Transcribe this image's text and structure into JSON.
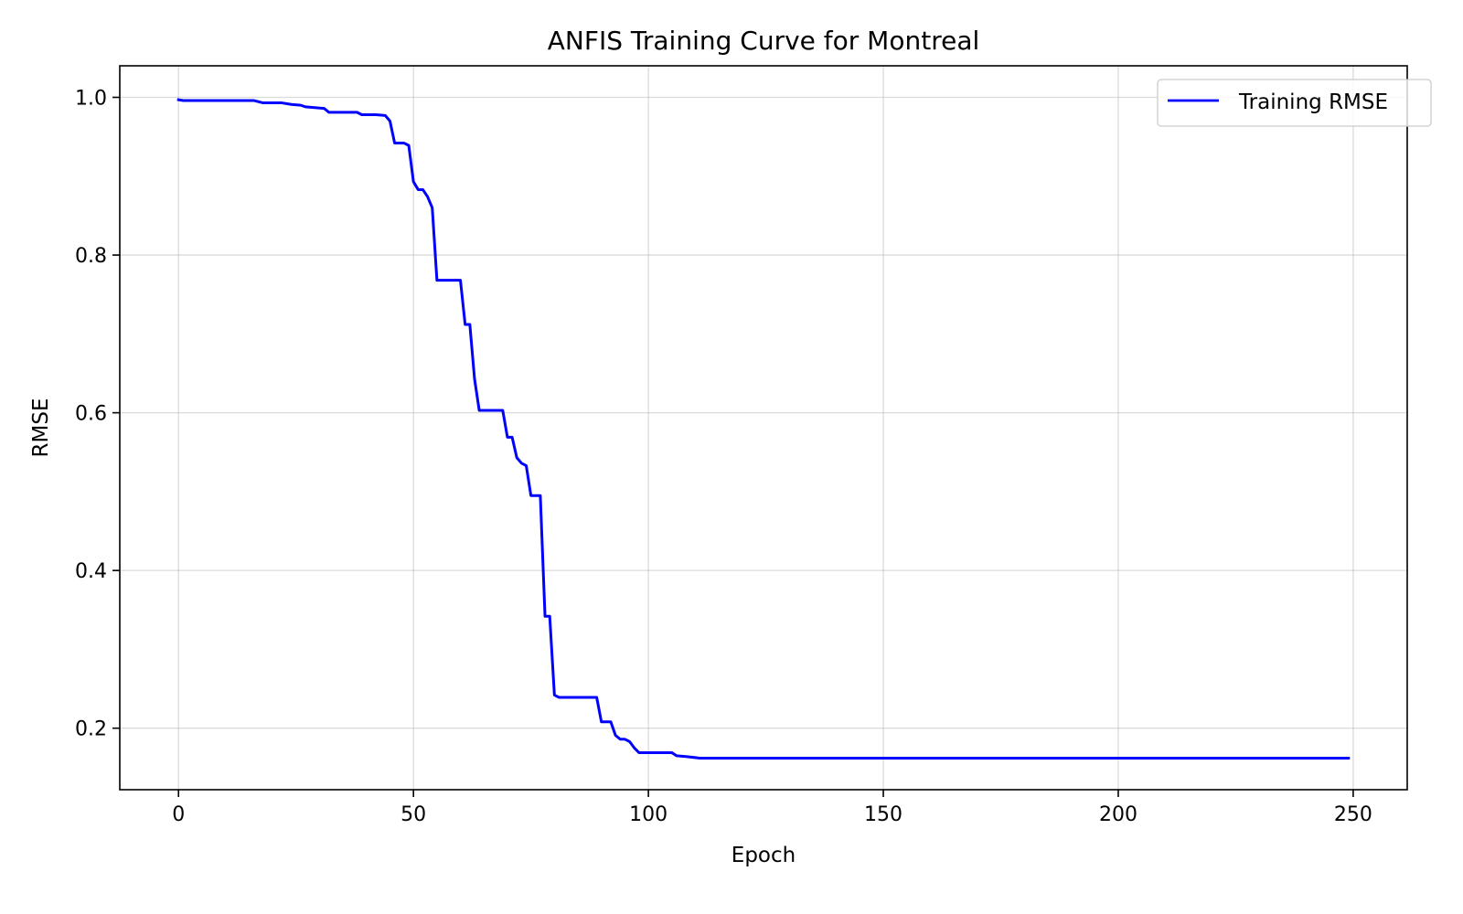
{
  "chart_data": {
    "type": "line",
    "title": "ANFIS Training Curve for Montreal",
    "xlabel": "Epoch",
    "ylabel": "RMSE",
    "xlim": [
      -12.5,
      261.5
    ],
    "ylim": [
      0.122,
      1.04
    ],
    "xticks": [
      0,
      50,
      100,
      150,
      200,
      250
    ],
    "yticks": [
      0.2,
      0.4,
      0.6,
      0.8,
      1.0
    ],
    "xtick_labels": [
      "0",
      "50",
      "100",
      "150",
      "200",
      "250"
    ],
    "ytick_labels": [
      "0.2",
      "0.4",
      "0.6",
      "0.8",
      "1.0"
    ],
    "grid": true,
    "legend_position": "top-right",
    "series": [
      {
        "name": "Training RMSE",
        "color": "#0000ff",
        "points": [
          [
            0,
            0.997
          ],
          [
            1,
            0.996
          ],
          [
            16,
            0.996
          ],
          [
            18,
            0.993
          ],
          [
            22,
            0.993
          ],
          [
            24,
            0.991
          ],
          [
            26,
            0.99
          ],
          [
            27,
            0.988
          ],
          [
            29,
            0.987
          ],
          [
            31,
            0.986
          ],
          [
            32,
            0.981
          ],
          [
            38,
            0.981
          ],
          [
            39,
            0.978
          ],
          [
            42,
            0.978
          ],
          [
            44,
            0.977
          ],
          [
            45,
            0.97
          ],
          [
            46,
            0.942
          ],
          [
            48,
            0.942
          ],
          [
            49,
            0.939
          ],
          [
            50,
            0.893
          ],
          [
            51,
            0.883
          ],
          [
            52,
            0.883
          ],
          [
            53,
            0.874
          ],
          [
            54,
            0.86
          ],
          [
            55,
            0.768
          ],
          [
            60,
            0.768
          ],
          [
            61,
            0.712
          ],
          [
            62,
            0.712
          ],
          [
            63,
            0.643
          ],
          [
            64,
            0.603
          ],
          [
            69,
            0.603
          ],
          [
            70,
            0.569
          ],
          [
            71,
            0.569
          ],
          [
            72,
            0.543
          ],
          [
            73,
            0.536
          ],
          [
            74,
            0.533
          ],
          [
            75,
            0.495
          ],
          [
            77,
            0.495
          ],
          [
            78,
            0.342
          ],
          [
            79,
            0.342
          ],
          [
            80,
            0.242
          ],
          [
            81,
            0.239
          ],
          [
            89,
            0.239
          ],
          [
            90,
            0.208
          ],
          [
            92,
            0.208
          ],
          [
            93,
            0.191
          ],
          [
            94,
            0.186
          ],
          [
            95,
            0.186
          ],
          [
            96,
            0.183
          ],
          [
            97,
            0.175
          ],
          [
            98,
            0.169
          ],
          [
            105,
            0.169
          ],
          [
            106,
            0.165
          ],
          [
            108,
            0.164
          ],
          [
            111,
            0.162
          ],
          [
            249,
            0.162
          ]
        ]
      }
    ]
  }
}
